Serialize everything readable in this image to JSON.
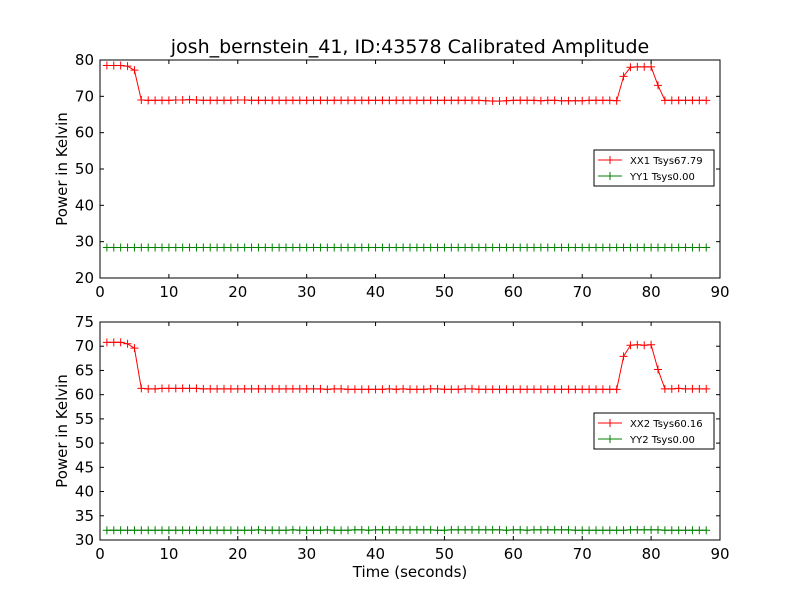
{
  "chart_data": [
    {
      "type": "line",
      "title": "josh_bernstein_41, ID:43578 Calibrated Amplitude",
      "xlabel": "",
      "ylabel": "Power in Kelvin",
      "xlim": [
        0,
        90
      ],
      "ylim": [
        20,
        80
      ],
      "xticks": [
        0,
        10,
        20,
        30,
        40,
        50,
        60,
        70,
        80,
        90
      ],
      "yticks": [
        20,
        30,
        40,
        50,
        60,
        70,
        80
      ],
      "grid": false,
      "legend_position": "center-right",
      "x": [
        1,
        2,
        3,
        4,
        5,
        6,
        7,
        8,
        9,
        10,
        11,
        12,
        13,
        14,
        15,
        16,
        17,
        18,
        19,
        20,
        21,
        22,
        23,
        24,
        25,
        26,
        27,
        28,
        29,
        30,
        31,
        32,
        33,
        34,
        35,
        36,
        37,
        38,
        39,
        40,
        41,
        42,
        43,
        44,
        45,
        46,
        47,
        48,
        49,
        50,
        51,
        52,
        53,
        54,
        55,
        56,
        57,
        58,
        59,
        60,
        61,
        62,
        63,
        64,
        65,
        66,
        67,
        68,
        69,
        70,
        71,
        72,
        73,
        74,
        75,
        76,
        77,
        78,
        79,
        80,
        81,
        82,
        83,
        84,
        85,
        86,
        87,
        88
      ],
      "series": [
        {
          "name": "XX1 Tsys67.79",
          "color": "#ff0000",
          "values": [
            78.5,
            78.5,
            78.5,
            78.3,
            77.2,
            69.0,
            68.9,
            68.9,
            68.9,
            68.9,
            69.0,
            69.0,
            69.1,
            69.0,
            68.9,
            68.9,
            68.9,
            68.9,
            68.9,
            69.0,
            69.0,
            68.9,
            68.9,
            68.9,
            68.9,
            68.9,
            68.9,
            68.9,
            68.9,
            68.9,
            68.9,
            68.9,
            68.9,
            68.9,
            68.9,
            68.9,
            68.9,
            68.9,
            68.9,
            68.9,
            68.9,
            68.9,
            68.9,
            68.9,
            68.9,
            68.9,
            68.9,
            68.9,
            68.9,
            68.9,
            68.9,
            68.9,
            68.9,
            68.9,
            68.9,
            68.8,
            68.7,
            68.7,
            68.8,
            68.9,
            68.9,
            68.9,
            68.9,
            68.8,
            68.9,
            68.9,
            68.8,
            68.8,
            68.8,
            68.8,
            68.9,
            68.9,
            68.9,
            68.9,
            68.8,
            75.5,
            78.0,
            78.1,
            78.1,
            78.1,
            73.0,
            68.9,
            68.9,
            68.9,
            68.9,
            68.9,
            68.9,
            68.9
          ]
        },
        {
          "name": "YY1 Tsys0.00",
          "color": "#008000",
          "values": [
            28.4,
            28.4,
            28.4,
            28.4,
            28.4,
            28.4,
            28.4,
            28.4,
            28.4,
            28.4,
            28.4,
            28.4,
            28.4,
            28.4,
            28.4,
            28.4,
            28.4,
            28.4,
            28.4,
            28.4,
            28.4,
            28.4,
            28.4,
            28.4,
            28.4,
            28.4,
            28.4,
            28.4,
            28.4,
            28.4,
            28.4,
            28.4,
            28.4,
            28.4,
            28.4,
            28.4,
            28.4,
            28.4,
            28.4,
            28.4,
            28.4,
            28.4,
            28.4,
            28.4,
            28.4,
            28.4,
            28.4,
            28.4,
            28.4,
            28.4,
            28.4,
            28.4,
            28.4,
            28.4,
            28.4,
            28.4,
            28.4,
            28.4,
            28.4,
            28.4,
            28.4,
            28.4,
            28.4,
            28.4,
            28.4,
            28.4,
            28.4,
            28.4,
            28.4,
            28.4,
            28.4,
            28.4,
            28.4,
            28.4,
            28.4,
            28.4,
            28.4,
            28.4,
            28.4,
            28.4,
            28.4,
            28.4,
            28.4,
            28.4,
            28.4,
            28.4,
            28.4,
            28.4
          ]
        }
      ]
    },
    {
      "type": "line",
      "title": "",
      "xlabel": "Time (seconds)",
      "ylabel": "Power in Kelvin",
      "xlim": [
        0,
        90
      ],
      "ylim": [
        30,
        75
      ],
      "xticks": [
        0,
        10,
        20,
        30,
        40,
        50,
        60,
        70,
        80,
        90
      ],
      "yticks": [
        30,
        35,
        40,
        45,
        50,
        55,
        60,
        65,
        70,
        75
      ],
      "grid": false,
      "legend_position": "center-right",
      "x": [
        1,
        2,
        3,
        4,
        5,
        6,
        7,
        8,
        9,
        10,
        11,
        12,
        13,
        14,
        15,
        16,
        17,
        18,
        19,
        20,
        21,
        22,
        23,
        24,
        25,
        26,
        27,
        28,
        29,
        30,
        31,
        32,
        33,
        34,
        35,
        36,
        37,
        38,
        39,
        40,
        41,
        42,
        43,
        44,
        45,
        46,
        47,
        48,
        49,
        50,
        51,
        52,
        53,
        54,
        55,
        56,
        57,
        58,
        59,
        60,
        61,
        62,
        63,
        64,
        65,
        66,
        67,
        68,
        69,
        70,
        71,
        72,
        73,
        74,
        75,
        76,
        77,
        78,
        79,
        80,
        81,
        82,
        83,
        84,
        85,
        86,
        87,
        88
      ],
      "series": [
        {
          "name": "XX2 Tsys60.16",
          "color": "#ff0000",
          "values": [
            70.8,
            70.8,
            70.8,
            70.5,
            69.6,
            61.3,
            61.2,
            61.2,
            61.3,
            61.3,
            61.3,
            61.3,
            61.3,
            61.3,
            61.2,
            61.2,
            61.2,
            61.2,
            61.2,
            61.2,
            61.2,
            61.2,
            61.2,
            61.2,
            61.2,
            61.2,
            61.2,
            61.2,
            61.2,
            61.2,
            61.2,
            61.2,
            61.1,
            61.2,
            61.2,
            61.1,
            61.1,
            61.1,
            61.1,
            61.1,
            61.1,
            61.2,
            61.1,
            61.2,
            61.1,
            61.1,
            61.1,
            61.2,
            61.2,
            61.1,
            61.1,
            61.1,
            61.2,
            61.2,
            61.1,
            61.1,
            61.1,
            61.1,
            61.1,
            61.1,
            61.1,
            61.1,
            61.1,
            61.1,
            61.1,
            61.1,
            61.1,
            61.1,
            61.1,
            61.1,
            61.1,
            61.1,
            61.1,
            61.1,
            61.1,
            67.9,
            70.2,
            70.3,
            70.2,
            70.3,
            65.2,
            61.2,
            61.2,
            61.3,
            61.2,
            61.2,
            61.2,
            61.2
          ]
        },
        {
          "name": "YY2 Tsys0.00",
          "color": "#008000",
          "values": [
            32.0,
            32.0,
            32.0,
            32.0,
            32.0,
            32.0,
            32.0,
            32.0,
            32.0,
            32.0,
            32.0,
            32.0,
            32.0,
            32.0,
            32.0,
            32.0,
            32.0,
            32.0,
            32.0,
            32.0,
            32.0,
            32.0,
            32.1,
            32.0,
            32.0,
            32.0,
            32.0,
            32.1,
            32.0,
            32.0,
            32.0,
            32.0,
            32.1,
            32.0,
            32.0,
            32.0,
            32.1,
            32.1,
            32.0,
            32.1,
            32.1,
            32.1,
            32.1,
            32.1,
            32.1,
            32.1,
            32.1,
            32.1,
            32.0,
            32.0,
            32.1,
            32.1,
            32.1,
            32.1,
            32.1,
            32.1,
            32.1,
            32.1,
            32.0,
            32.1,
            32.1,
            32.0,
            32.1,
            32.1,
            32.1,
            32.1,
            32.1,
            32.1,
            32.0,
            32.0,
            32.0,
            32.0,
            32.0,
            32.0,
            32.0,
            32.0,
            32.1,
            32.1,
            32.1,
            32.1,
            32.1,
            32.0,
            32.0,
            32.0,
            32.0,
            32.0,
            32.0,
            32.0
          ]
        }
      ]
    }
  ]
}
